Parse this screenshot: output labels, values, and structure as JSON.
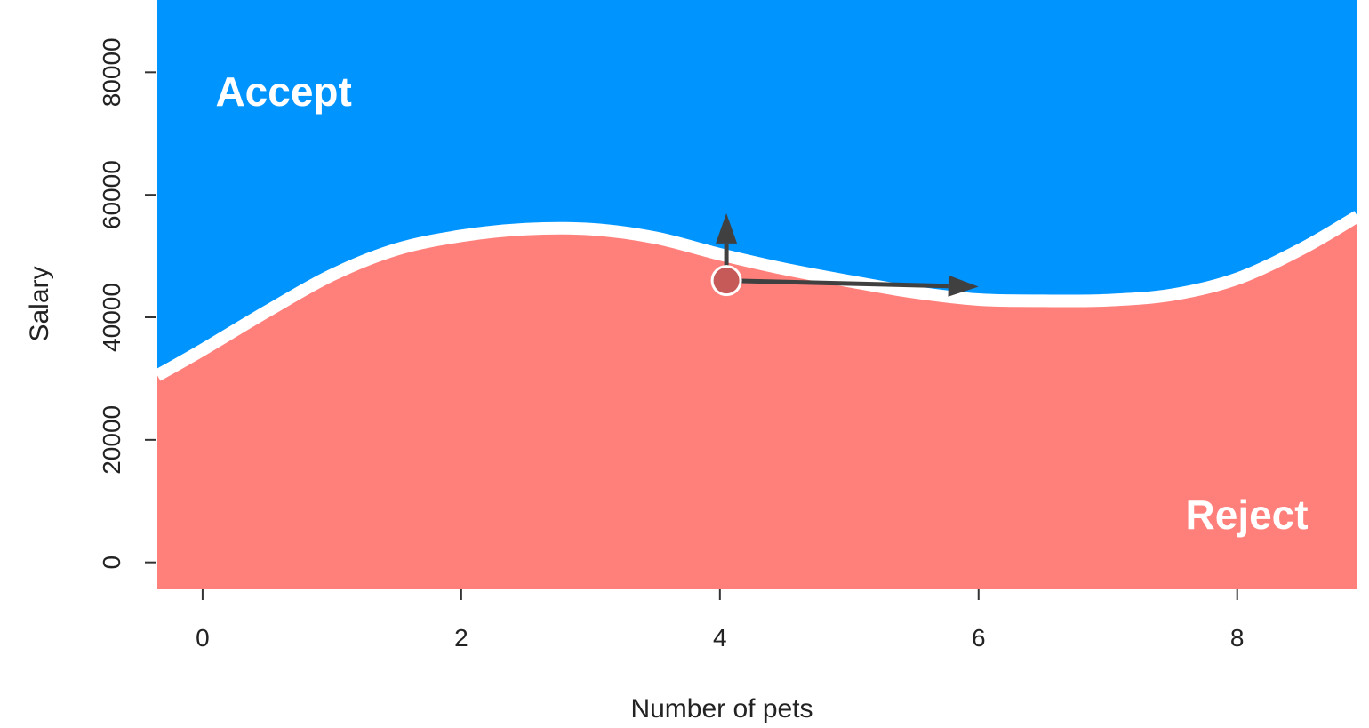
{
  "chart_data": {
    "type": "area",
    "xlabel": "Number of pets",
    "ylabel": "Salary",
    "xlim": [
      -0.35,
      8.93
    ],
    "ylim": [
      -4400,
      91800
    ],
    "xticks": [
      0,
      2,
      4,
      6,
      8
    ],
    "yticks": [
      0,
      20000,
      40000,
      60000,
      80000
    ],
    "grid": false,
    "regions": [
      {
        "name": "Accept",
        "color": "#0094ff",
        "side": "above boundary"
      },
      {
        "name": "Reject",
        "color": "#ff7f7b",
        "side": "below boundary"
      }
    ],
    "boundary": {
      "x": [
        -0.35,
        0,
        0.5,
        1,
        1.5,
        2,
        2.5,
        3,
        3.5,
        4,
        4.5,
        5,
        5.5,
        6,
        6.5,
        7,
        7.5,
        8,
        8.5,
        8.93
      ],
      "y": [
        30500,
        34700,
        41000,
        46900,
        51100,
        53300,
        54400,
        54400,
        53000,
        50300,
        47900,
        45900,
        44100,
        42900,
        42700,
        42800,
        43700,
        46300,
        51200,
        56500
      ]
    },
    "point": {
      "x": 4.05,
      "y": 46000,
      "color": "#c55a59"
    },
    "arrows": [
      {
        "from": {
          "x": 4.05,
          "y": 46000
        },
        "to": {
          "x": 4.05,
          "y": 57000
        }
      },
      {
        "from": {
          "x": 4.05,
          "y": 46000
        },
        "to": {
          "x": 6.0,
          "y": 45000
        }
      }
    ],
    "annotations": [
      {
        "text": "Accept",
        "x": 0.1,
        "y": 74500
      },
      {
        "text": "Reject",
        "x": 7.6,
        "y": 5500
      }
    ]
  }
}
